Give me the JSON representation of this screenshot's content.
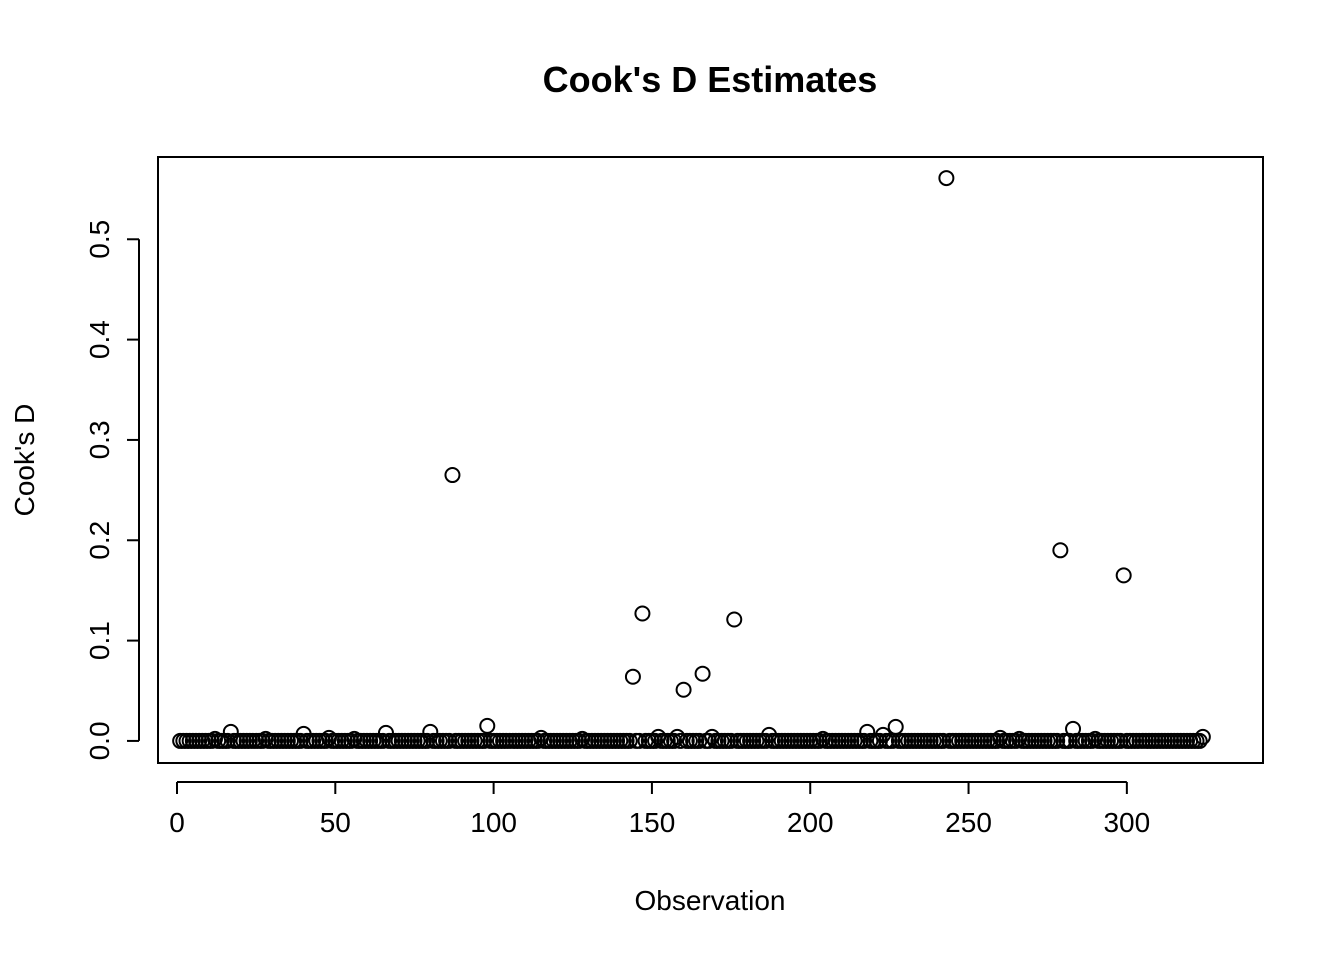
{
  "chart_data": {
    "type": "scatter",
    "title": "Cook's D Estimates",
    "xlabel": "Observation",
    "ylabel": "Cook's D",
    "xlim": [
      -6,
      343
    ],
    "ylim": [
      -0.022,
      0.582
    ],
    "x_ticks": [
      0,
      50,
      100,
      150,
      200,
      250,
      300
    ],
    "y_ticks": [
      0.0,
      0.1,
      0.2,
      0.3,
      0.4,
      0.5
    ],
    "x_tick_labels": [
      "0",
      "50",
      "100",
      "150",
      "200",
      "250",
      "300"
    ],
    "y_tick_labels": [
      "0.0",
      "0.1",
      "0.2",
      "0.3",
      "0.4",
      "0.5"
    ],
    "grid": false,
    "legend": "none",
    "marker": "open-circle",
    "n": 324,
    "highlights": [
      {
        "x": 17,
        "y": 0.009
      },
      {
        "x": 40,
        "y": 0.007
      },
      {
        "x": 66,
        "y": 0.008
      },
      {
        "x": 80,
        "y": 0.009
      },
      {
        "x": 87,
        "y": 0.265
      },
      {
        "x": 98,
        "y": 0.015
      },
      {
        "x": 144,
        "y": 0.064
      },
      {
        "x": 147,
        "y": 0.127
      },
      {
        "x": 160,
        "y": 0.051
      },
      {
        "x": 166,
        "y": 0.067
      },
      {
        "x": 176,
        "y": 0.121
      },
      {
        "x": 187,
        "y": 0.006
      },
      {
        "x": 218,
        "y": 0.009
      },
      {
        "x": 223,
        "y": 0.006
      },
      {
        "x": 227,
        "y": 0.014
      },
      {
        "x": 243,
        "y": 0.561
      },
      {
        "x": 279,
        "y": 0.19
      },
      {
        "x": 283,
        "y": 0.012
      },
      {
        "x": 299,
        "y": 0.165
      },
      {
        "x": 324,
        "y": 0.004
      }
    ],
    "small_values": [
      {
        "x": 12,
        "y": 0.002
      },
      {
        "x": 28,
        "y": 0.002
      },
      {
        "x": 48,
        "y": 0.003
      },
      {
        "x": 56,
        "y": 0.002
      },
      {
        "x": 115,
        "y": 0.003
      },
      {
        "x": 128,
        "y": 0.002
      },
      {
        "x": 152,
        "y": 0.004
      },
      {
        "x": 158,
        "y": 0.004
      },
      {
        "x": 169,
        "y": 0.004
      },
      {
        "x": 204,
        "y": 0.002
      },
      {
        "x": 260,
        "y": 0.003
      },
      {
        "x": 266,
        "y": 0.002
      },
      {
        "x": 290,
        "y": 0.002
      }
    ],
    "baseline_value": 0.0
  }
}
